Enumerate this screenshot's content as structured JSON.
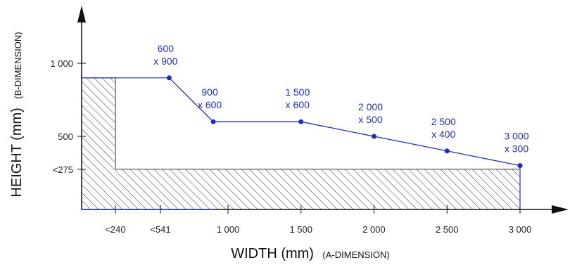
{
  "chart_data": {
    "type": "line",
    "xlabel": {
      "main": "WIDTH (mm)",
      "sub": "(A-DIMENSION)"
    },
    "ylabel": {
      "main": "HEIGHT (mm)",
      "sub": "(B-DIMENSION)"
    },
    "x_ticks": [
      {
        "value": 240,
        "label": "<240"
      },
      {
        "value": 541,
        "label": "<541"
      },
      {
        "value": 1000,
        "label": "1 000"
      },
      {
        "value": 1500,
        "label": "1 500"
      },
      {
        "value": 2000,
        "label": "2 000"
      },
      {
        "value": 2500,
        "label": "2 500"
      },
      {
        "value": 3000,
        "label": "3 000"
      }
    ],
    "y_ticks": [
      {
        "value": 275,
        "label": "<275"
      },
      {
        "value": 500,
        "label": "500"
      },
      {
        "value": 1000,
        "label": "1 000"
      }
    ],
    "xlim": [
      0,
      3000
    ],
    "ylim": [
      0,
      1000
    ],
    "min_width": 240,
    "min_height": 275,
    "series": [
      {
        "color": "#1f2fb8",
        "points": [
          {
            "x": 600,
            "y": 900,
            "label_line1": "600",
            "label_line2": "x 900"
          },
          {
            "x": 900,
            "y": 600,
            "label_line1": "900",
            "label_line2": "x 600"
          },
          {
            "x": 1500,
            "y": 600,
            "label_line1": "1 500",
            "label_line2": "x 600"
          },
          {
            "x": 2000,
            "y": 500,
            "label_line1": "2 000",
            "label_line2": "x 500"
          },
          {
            "x": 2500,
            "y": 400,
            "label_line1": "2 500",
            "label_line2": "x 400"
          },
          {
            "x": 3000,
            "y": 300,
            "label_line1": "3 000",
            "label_line2": "x 300"
          }
        ]
      }
    ],
    "excluded_region": "hatched",
    "grid": false,
    "legend": "none"
  }
}
